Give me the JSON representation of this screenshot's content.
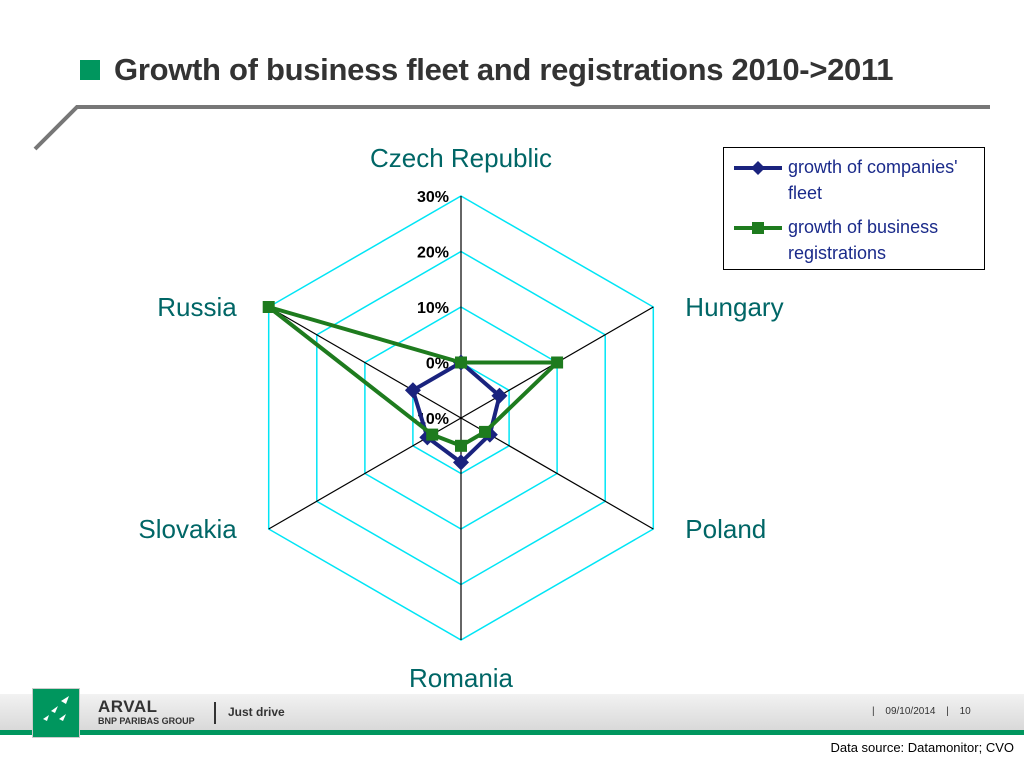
{
  "slide": {
    "title": "Growth of business fleet and registrations 2010->2011",
    "source": "Data source: Datamonitor; CVO"
  },
  "footer": {
    "brand": "ARVAL",
    "brand_sub": "BNP PARIBAS GROUP",
    "slogan": "Just drive",
    "separator": "|",
    "date": "09/10/2014",
    "page": "10"
  },
  "colors": {
    "accent_green": "#00965e",
    "grid": "#00e5f5",
    "axis_label": "#006666",
    "fleet": "#1a237e",
    "registrations": "#1e7b1e"
  },
  "chart_data": {
    "type": "radar",
    "categories": [
      "Czech Republic",
      "Hungary",
      "Poland",
      "Romania",
      "Slovakia",
      "Russia"
    ],
    "tick_labels": [
      "-10%",
      "0%",
      "10%",
      "20%",
      "30%"
    ],
    "rlim": [
      -10,
      30
    ],
    "ticks": [
      -10,
      0,
      10,
      20,
      30
    ],
    "series": [
      {
        "name": "growth of companies' fleet",
        "values": [
          0,
          -2,
          -4,
          -2,
          -3,
          0
        ]
      },
      {
        "name": "growth of business registrations",
        "values": [
          0,
          10,
          -5,
          -5,
          -4,
          30
        ]
      }
    ],
    "legend": "top-right",
    "grid": true
  }
}
